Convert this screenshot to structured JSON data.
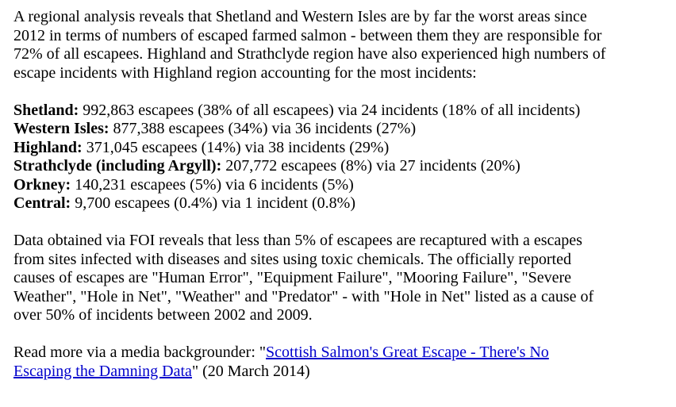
{
  "intro": {
    "lines": [
      "A regional analysis reveals that Shetland and Western Isles are by far the worst areas since",
      "2012 in terms of numbers of escaped farmed salmon - between them they are responsible for",
      "72% of all escapees.  Highland and Strathclyde region have also experienced high numbers of",
      "escape incidents with Highland region accounting for the most incidents:"
    ]
  },
  "regions": [
    {
      "name": "Shetland:",
      "detail": " 992,863 escapees (38% of all escapees) via 24 incidents (18% of all incidents)"
    },
    {
      "name": "Western Isles:",
      "detail": " 877,388 escapees (34%) via 36 incidents (27%)"
    },
    {
      "name": "Highland:",
      "detail": " 371,045 escapees (14%) via 38 incidents (29%)"
    },
    {
      "name": "Strathclyde (including Argyll):",
      "detail": " 207,772 escapees (8%) via 27 incidents (20%)"
    },
    {
      "name": "Orkney:",
      "detail": " 140,231 escapees (5%) via 6 incidents (5%)"
    },
    {
      "name": "Central:",
      "detail": " 9,700 escapees (0.4%) via 1 incident (0.8%)"
    }
  ],
  "foi": {
    "lines": [
      "Data obtained via FOI reveals that less than 5% of escapees are recaptured with a escapes",
      "from sites infected with diseases and sites using toxic chemicals.  The officially reported",
      "causes of escapes are \"Human Error\", \"Equipment Failure\", \"Mooring Failure\", \"Severe",
      "Weather\", \"Hole in Net\", \"Weather\" and \"Predator\" - with \"Hole in Net\" listed as a cause of",
      "over 50% of incidents between 2002 and 2009."
    ]
  },
  "read_more": {
    "prefix": "Read more via a media backgrounder: \"",
    "link_line1": "Scottish Salmon's Great Escape - There's No",
    "link_line2": "Escaping the Damning Data",
    "suffix": "\" (20 March 2014)",
    "link_color": "#0000cc"
  }
}
